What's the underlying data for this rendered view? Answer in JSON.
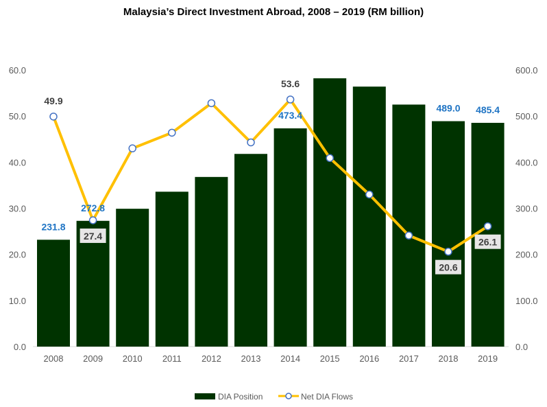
{
  "chart_data": {
    "type": "bar+line",
    "title": "Malaysia’s Direct Investment Abroad, 2008 – 2019 (RM billion)",
    "categories": [
      "2008",
      "2009",
      "2010",
      "2011",
      "2012",
      "2013",
      "2014",
      "2015",
      "2016",
      "2017",
      "2018",
      "2019"
    ],
    "series": [
      {
        "name": "DIA Position",
        "type": "bar",
        "axis": "right",
        "color": "#003300",
        "values": [
          231.8,
          272.8,
          299,
          336,
          368,
          418,
          473.4,
          582,
          564,
          525,
          489.0,
          485.4
        ],
        "labels": [
          "231.8",
          "272.8",
          null,
          null,
          null,
          null,
          "473.4",
          null,
          null,
          null,
          "489.0",
          "485.4"
        ]
      },
      {
        "name": "Net DIA Flows",
        "type": "line",
        "axis": "left",
        "color": "#ffc000",
        "marker_color": "#4472c4",
        "values": [
          49.9,
          27.4,
          43.0,
          46.4,
          52.8,
          44.3,
          53.6,
          40.9,
          33.0,
          24.1,
          20.6,
          26.1
        ],
        "labels": [
          "49.9",
          "27.4",
          null,
          null,
          null,
          null,
          "53.6",
          null,
          null,
          null,
          "20.6",
          "26.1"
        ]
      }
    ],
    "left_axis": {
      "ylim": [
        0,
        60
      ],
      "ticks": [
        "0.0",
        "10.0",
        "20.0",
        "30.0",
        "40.0",
        "50.0",
        "60.0"
      ]
    },
    "right_axis": {
      "ylim": [
        0,
        600
      ],
      "ticks": [
        "0.0",
        "100.0",
        "200.0",
        "300.0",
        "400.0",
        "500.0",
        "600.0"
      ]
    },
    "grid": false,
    "legend": "bottom-center"
  }
}
